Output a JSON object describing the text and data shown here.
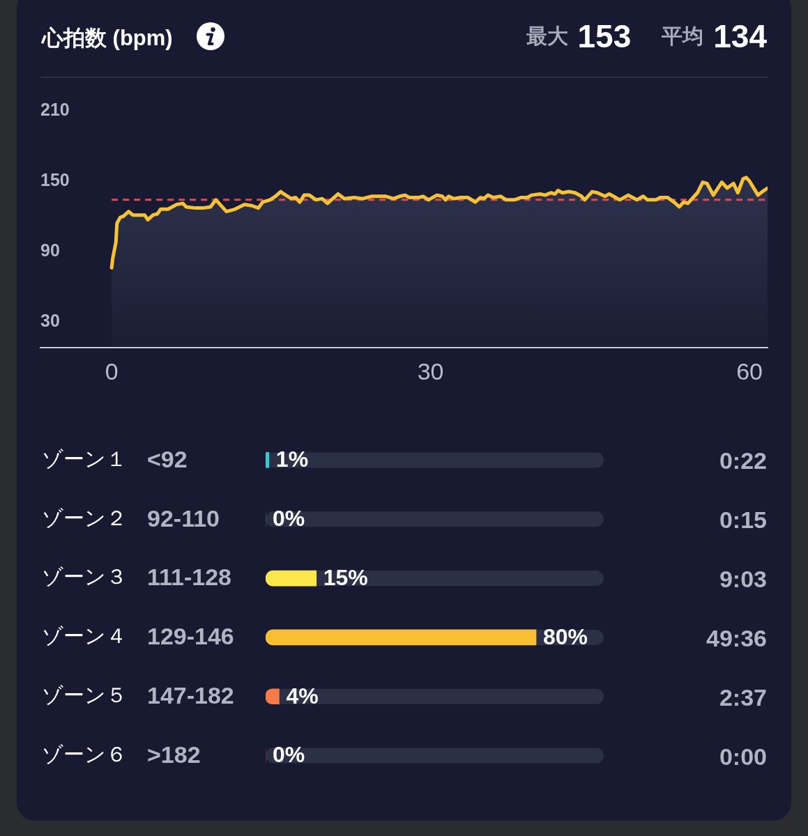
{
  "chart_data": [
    {
      "type": "area",
      "title": "心拍数 (bpm)",
      "annotations": [
        "最大",
        "153",
        "平均",
        "134"
      ],
      "x": [
        0,
        0.1,
        0.4,
        0.5,
        0.8,
        1.1,
        1.6,
        2.0,
        2.8,
        3.1,
        3.4,
        3.9,
        4.3,
        4.6,
        5.3,
        6.1,
        6.7,
        7.0,
        7.9,
        8.6,
        9.3,
        9.8,
        10.1,
        10.8,
        11.6,
        12.5,
        13.2,
        13.8,
        14.2,
        14.9,
        15.4,
        15.9,
        16.2,
        16.9,
        17.3,
        17.7,
        18.1,
        18.6,
        19.2,
        19.8,
        20.3,
        20.8,
        21.3,
        21.9,
        22.8,
        23.6,
        24.5,
        25.8,
        26.5,
        27.1,
        27.6,
        28.0,
        28.9,
        29.3,
        29.8,
        30.6,
        31.1,
        31.4,
        31.7,
        32.2,
        32.8,
        33.5,
        34.2,
        34.7,
        35.0,
        35.4,
        35.9,
        36.6,
        37.1,
        37.9,
        38.5,
        39.1,
        39.5,
        40.3,
        40.8,
        41.3,
        41.7,
        42.0,
        42.4,
        43.0,
        43.6,
        44.2,
        44.5,
        45.2,
        45.7,
        46.4,
        46.8,
        47.2,
        47.8,
        48.6,
        49.0,
        49.4,
        50.0,
        50.4,
        51.2,
        51.6,
        52.3,
        52.9,
        53.4,
        53.8,
        54.2,
        54.7,
        55.1,
        55.6,
        56.0,
        56.6,
        57.4,
        57.9,
        58.5,
        58.9,
        59.4,
        59.7,
        60.0,
        60.8,
        61.2,
        61.7
      ],
      "series": [
        {
          "color": "#f7c236",
          "values": [
            76,
            84,
            98,
            114,
            119,
            120,
            124,
            121,
            121,
            121,
            117,
            121,
            122,
            126,
            126,
            130,
            131,
            128,
            127,
            127,
            128,
            134,
            131,
            124,
            126,
            130,
            129,
            127,
            132,
            134,
            137,
            141,
            139,
            135,
            136,
            132,
            138,
            138,
            134,
            135,
            131,
            135,
            139,
            135,
            136,
            135,
            137,
            137,
            135,
            137,
            138,
            136,
            136,
            137,
            134,
            138,
            137,
            134,
            137,
            135,
            136,
            136,
            132,
            136,
            135,
            138,
            136,
            137,
            134,
            134,
            136,
            136,
            138,
            139,
            138,
            140,
            139,
            142,
            140,
            141,
            140,
            137,
            134,
            141,
            140,
            137,
            139,
            137,
            134,
            138,
            136,
            134,
            137,
            134,
            134,
            136,
            136,
            132,
            128,
            132,
            131,
            136,
            140,
            149,
            148,
            138,
            149,
            144,
            148,
            140,
            152,
            153,
            150,
            138,
            141,
            144
          ]
        }
      ],
      "xlim": [
        -6.7,
        61.7
      ],
      "xticks": [
        0,
        30,
        60
      ],
      "ylim": [
        8,
        210
      ],
      "yticks": [
        30,
        90,
        150,
        210
      ],
      "ref_lines": [
        {
          "axis": "y",
          "value": 134,
          "color": "#e5484d",
          "line_style": "dashed"
        }
      ]
    },
    {
      "type": "bar",
      "orientation": "horizontal",
      "categories": [
        "ゾーン１",
        "ゾーン２",
        "ゾーン３",
        "ゾーン４",
        "ゾーン５",
        "ゾーン６"
      ],
      "y2_categories": [
        "<92",
        "92-110",
        "111-128",
        "129-146",
        "147-182",
        ">182"
      ],
      "values": [
        1,
        0,
        15,
        80,
        4,
        0
      ],
      "colors": [
        "#3cc8d0",
        "#27b25e",
        "#fbe74b",
        "#f9bf33",
        "#f77b48",
        "#e5393b"
      ],
      "xlim": [
        0,
        100
      ],
      "tick_labels": "y",
      "value_labels": [
        "1%",
        "0%",
        "15%",
        "80%",
        "4%",
        "0%"
      ],
      "annotations": [
        "0:22",
        "0:15",
        "9:03",
        "49:36",
        "2:37",
        "0:00"
      ]
    }
  ]
}
